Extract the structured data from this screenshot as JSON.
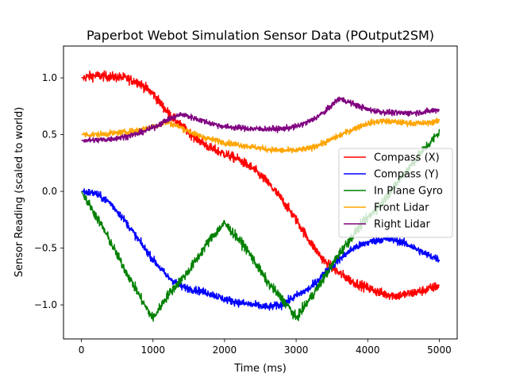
{
  "chart_data": {
    "type": "line",
    "title": "Paperbot Webot Simulation Sensor Data (POutput2SM)",
    "xlabel": "Time (ms)",
    "ylabel": "Sensor Reading (scaled to world)",
    "xlim": [
      -250,
      5250
    ],
    "ylim": [
      -1.3,
      1.28
    ],
    "xticks": [
      0,
      1000,
      2000,
      3000,
      4000,
      5000
    ],
    "xtick_labels": [
      "0",
      "1000",
      "2000",
      "3000",
      "4000",
      "5000"
    ],
    "yticks": [
      -1.0,
      -0.5,
      0.0,
      0.5,
      1.0
    ],
    "ytick_labels": [
      "−1.0",
      "−0.5",
      "0.0",
      "0.5",
      "1.0"
    ],
    "grid": false,
    "legend_position": "center-right",
    "series": [
      {
        "name": "Compass (X)",
        "color": "#ff0000",
        "noise": 0.05,
        "x": [
          0,
          200,
          400,
          600,
          800,
          1000,
          1200,
          1400,
          1600,
          1800,
          2000,
          2200,
          2400,
          2600,
          2800,
          3000,
          3200,
          3400,
          3600,
          3800,
          4000,
          4200,
          4400,
          4600,
          4800,
          5000
        ],
        "y": [
          1.0,
          1.02,
          1.01,
          1.0,
          0.96,
          0.86,
          0.7,
          0.57,
          0.47,
          0.38,
          0.33,
          0.28,
          0.2,
          0.08,
          -0.07,
          -0.25,
          -0.45,
          -0.62,
          -0.72,
          -0.8,
          -0.85,
          -0.9,
          -0.92,
          -0.9,
          -0.87,
          -0.83
        ]
      },
      {
        "name": "Compass (Y)",
        "color": "#0000ff",
        "noise": 0.04,
        "x": [
          0,
          200,
          400,
          600,
          800,
          1000,
          1200,
          1400,
          1600,
          1800,
          2000,
          2200,
          2400,
          2600,
          2800,
          3000,
          3200,
          3400,
          3600,
          3800,
          4000,
          4200,
          4400,
          4600,
          4800,
          5000
        ],
        "y": [
          0.0,
          -0.02,
          -0.1,
          -0.25,
          -0.43,
          -0.6,
          -0.75,
          -0.84,
          -0.87,
          -0.9,
          -0.95,
          -0.98,
          -1.0,
          -1.02,
          -1.0,
          -0.92,
          -0.85,
          -0.72,
          -0.6,
          -0.5,
          -0.45,
          -0.42,
          -0.43,
          -0.48,
          -0.55,
          -0.6
        ]
      },
      {
        "name": "In Plane Gyro",
        "color": "#008000",
        "noise": 0.05,
        "x": [
          0,
          300,
          600,
          900,
          1000,
          1200,
          1500,
          1800,
          2000,
          2300,
          2600,
          2900,
          3000,
          3300,
          3600,
          3900,
          4200,
          4500,
          4800,
          5000
        ],
        "y": [
          0.0,
          -0.32,
          -0.68,
          -1.02,
          -1.12,
          -0.92,
          -0.7,
          -0.42,
          -0.28,
          -0.5,
          -0.8,
          -1.02,
          -1.12,
          -0.85,
          -0.55,
          -0.3,
          -0.1,
          0.15,
          0.38,
          0.52
        ]
      },
      {
        "name": "Front Lidar",
        "color": "#ffa500",
        "noise": 0.03,
        "x": [
          0,
          200,
          400,
          600,
          800,
          1000,
          1200,
          1400,
          1600,
          1800,
          2000,
          2200,
          2400,
          2600,
          2800,
          3000,
          3200,
          3400,
          3600,
          3800,
          4000,
          4200,
          4400,
          4600,
          4800,
          5000
        ],
        "y": [
          0.5,
          0.5,
          0.51,
          0.52,
          0.54,
          0.57,
          0.61,
          0.56,
          0.5,
          0.46,
          0.43,
          0.41,
          0.39,
          0.37,
          0.36,
          0.36,
          0.38,
          0.43,
          0.49,
          0.55,
          0.6,
          0.62,
          0.61,
          0.6,
          0.6,
          0.62
        ]
      },
      {
        "name": "Right Lidar",
        "color": "#800080",
        "noise": 0.03,
        "x": [
          0,
          200,
          400,
          600,
          800,
          1000,
          1200,
          1400,
          1600,
          1800,
          2000,
          2200,
          2400,
          2600,
          2800,
          3000,
          3200,
          3400,
          3600,
          3800,
          4000,
          4200,
          4400,
          4600,
          4800,
          5000
        ],
        "y": [
          0.45,
          0.45,
          0.46,
          0.48,
          0.51,
          0.56,
          0.63,
          0.68,
          0.64,
          0.6,
          0.57,
          0.56,
          0.55,
          0.55,
          0.55,
          0.57,
          0.62,
          0.7,
          0.82,
          0.77,
          0.72,
          0.7,
          0.69,
          0.69,
          0.7,
          0.72
        ]
      }
    ]
  }
}
